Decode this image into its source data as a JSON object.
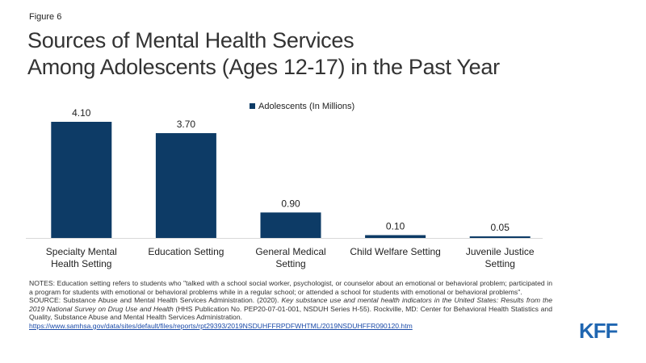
{
  "figure_label": "Figure 6",
  "title_lines": [
    "Sources of Mental Health Services",
    "Among Adolescents (Ages 12-17) in the Past Year"
  ],
  "chart_data": {
    "type": "bar",
    "categories": [
      [
        "Specialty Mental",
        "Health Setting"
      ],
      [
        "Education Setting"
      ],
      [
        "General Medical",
        "Setting"
      ],
      [
        "Child Welfare Setting"
      ],
      [
        "Juvenile Justice",
        "Setting"
      ]
    ],
    "series": [
      {
        "name": "Adolescents (In Millions)",
        "values": [
          4.1,
          3.7,
          0.9,
          0.1,
          0.05
        ],
        "labels": [
          "4.10",
          "3.70",
          "0.90",
          "0.10",
          "0.05"
        ],
        "color": "#0d3b66"
      }
    ],
    "ylim": [
      0,
      4.1
    ],
    "legend_position": "top-center",
    "grid": false,
    "xlabel": "",
    "ylabel": ""
  },
  "notes": {
    "notes_text": "NOTES: Education setting refers to students who \"talked with a school social worker, psychologist, or counselor about an emotional or behavioral problem; participated in a program for students with emotional or behavioral problems while in a regular school; or attended a school for students with emotional or behavioral problems\".",
    "source_prefix": "SOURCE: Substance Abuse and Mental Health Services Administration. (2020). ",
    "source_italic": "Key substance use and mental health indicators in the United States: Results from the 2019 National Survey on Drug Use and Health",
    "source_suffix": " (HHS Publication No. PEP20-07-01-001, NSDUH Series H-55). Rockville, MD: Center for Behavioral Health Statistics and Quality, Substance Abuse and Mental Health Services Administration.",
    "source_link": "https://www.samhsa.gov/data/sites/default/files/reports/rpt29393/2019NSDUHFFRPDFWHTML/2019NSDUHFFR090120.htm"
  },
  "logo_text": "KFF"
}
